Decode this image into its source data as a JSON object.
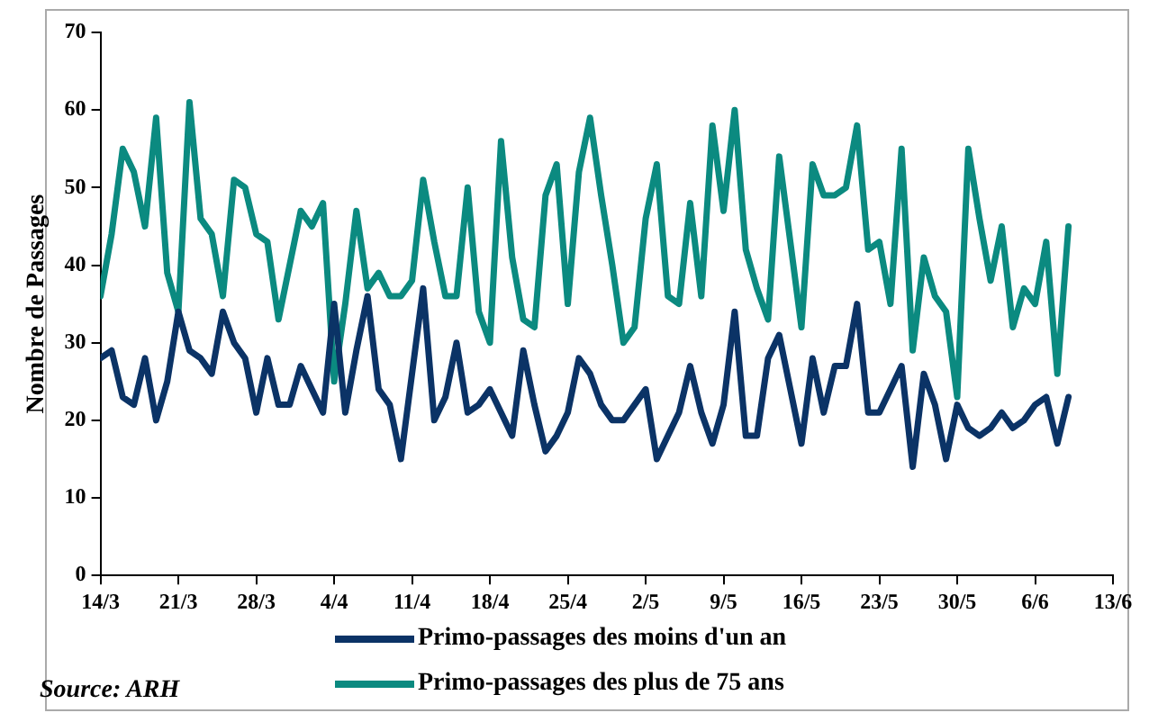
{
  "chart_data": {
    "type": "line",
    "ylabel": "Nombre de Passages",
    "x": [
      "--03-14",
      "--03-15",
      "--03-16",
      "--03-17",
      "--03-18",
      "--03-19",
      "--03-20",
      "--03-21",
      "--03-22",
      "--03-23",
      "--03-24",
      "--03-25",
      "--03-26",
      "--03-27",
      "--03-28",
      "--03-29",
      "--03-30",
      "--03-31",
      "--04-01",
      "--04-02",
      "--04-03",
      "--04-04",
      "--04-05",
      "--04-06",
      "--04-07",
      "--04-08",
      "--04-09",
      "--04-10",
      "--04-11",
      "--04-12",
      "--04-13",
      "--04-14",
      "--04-15",
      "--04-16",
      "--04-17",
      "--04-18",
      "--04-19",
      "--04-20",
      "--04-21",
      "--04-22",
      "--04-23",
      "--04-24",
      "--04-25",
      "--04-26",
      "--04-27",
      "--04-28",
      "--04-29",
      "--04-30",
      "--05-01",
      "--05-02",
      "--05-03",
      "--05-04",
      "--05-05",
      "--05-06",
      "--05-07",
      "--05-08",
      "--05-09",
      "--05-10",
      "--05-11",
      "--05-12",
      "--05-13",
      "--05-14",
      "--05-15",
      "--05-16",
      "--05-17",
      "--05-18",
      "--05-19",
      "--05-20",
      "--05-21",
      "--05-22",
      "--05-23",
      "--05-24",
      "--05-25",
      "--05-26",
      "--05-27",
      "--05-28",
      "--05-29",
      "--05-30",
      "--05-31",
      "--06-01",
      "--06-02",
      "--06-03",
      "--06-04",
      "--06-05",
      "--06-06",
      "--06-07",
      "--06-08",
      "--06-09"
    ],
    "series": [
      {
        "name": "Primo-passages des moins d'un an",
        "color": "#0b3366",
        "values": [
          28,
          29,
          23,
          22,
          28,
          20,
          25,
          34,
          29,
          28,
          26,
          34,
          30,
          28,
          21,
          28,
          22,
          22,
          27,
          24,
          21,
          35,
          21,
          29,
          36,
          24,
          22,
          15,
          26,
          37,
          20,
          23,
          30,
          21,
          22,
          24,
          21,
          18,
          29,
          22,
          16,
          18,
          21,
          28,
          26,
          22,
          20,
          20,
          22,
          24,
          15,
          18,
          21,
          27,
          21,
          17,
          22,
          34,
          18,
          18,
          28,
          31,
          24,
          17,
          28,
          21,
          27,
          27,
          35,
          21,
          21,
          24,
          27,
          14,
          26,
          22,
          15,
          22,
          19,
          18,
          19,
          21,
          19,
          20,
          22,
          23,
          17,
          23
        ]
      },
      {
        "name": "Primo-passages des plus de 75 ans",
        "color": "#0b8a80",
        "values": [
          36,
          44,
          55,
          52,
          45,
          59,
          39,
          34,
          61,
          46,
          44,
          36,
          51,
          50,
          44,
          43,
          33,
          40,
          47,
          45,
          48,
          25,
          35,
          47,
          37,
          39,
          36,
          36,
          38,
          51,
          43,
          36,
          36,
          50,
          34,
          30,
          56,
          41,
          33,
          32,
          49,
          53,
          35,
          52,
          59,
          49,
          40,
          30,
          32,
          46,
          53,
          36,
          35,
          48,
          36,
          58,
          47,
          60,
          42,
          37,
          33,
          54,
          43,
          32,
          53,
          49,
          49,
          50,
          58,
          42,
          43,
          35,
          55,
          29,
          41,
          36,
          34,
          23,
          55,
          46,
          38,
          45,
          32,
          37,
          35,
          43,
          26,
          45
        ]
      }
    ],
    "xlim": [
      "--03-14",
      "--06-13"
    ],
    "xticks": [
      {
        "value": "--03-14",
        "label": "14/3"
      },
      {
        "value": "--03-21",
        "label": "21/3"
      },
      {
        "value": "--03-28",
        "label": "28/3"
      },
      {
        "value": "--04-04",
        "label": "4/4"
      },
      {
        "value": "--04-11",
        "label": "11/4"
      },
      {
        "value": "--04-18",
        "label": "18/4"
      },
      {
        "value": "--04-25",
        "label": "25/4"
      },
      {
        "value": "--05-02",
        "label": "2/5"
      },
      {
        "value": "--05-09",
        "label": "9/5"
      },
      {
        "value": "--05-16",
        "label": "16/5"
      },
      {
        "value": "--05-23",
        "label": "23/5"
      },
      {
        "value": "--05-30",
        "label": "30/5"
      },
      {
        "value": "--06-06",
        "label": "6/6"
      },
      {
        "value": "--06-13",
        "label": "13/6"
      }
    ],
    "ylim": [
      0,
      70
    ],
    "yticks": [
      0,
      10,
      20,
      30,
      40,
      50,
      60,
      70
    ],
    "grid": false,
    "legend": "bottom",
    "marker": "none",
    "line_style": "solid",
    "annotations": [
      "Source: ARH"
    ]
  }
}
